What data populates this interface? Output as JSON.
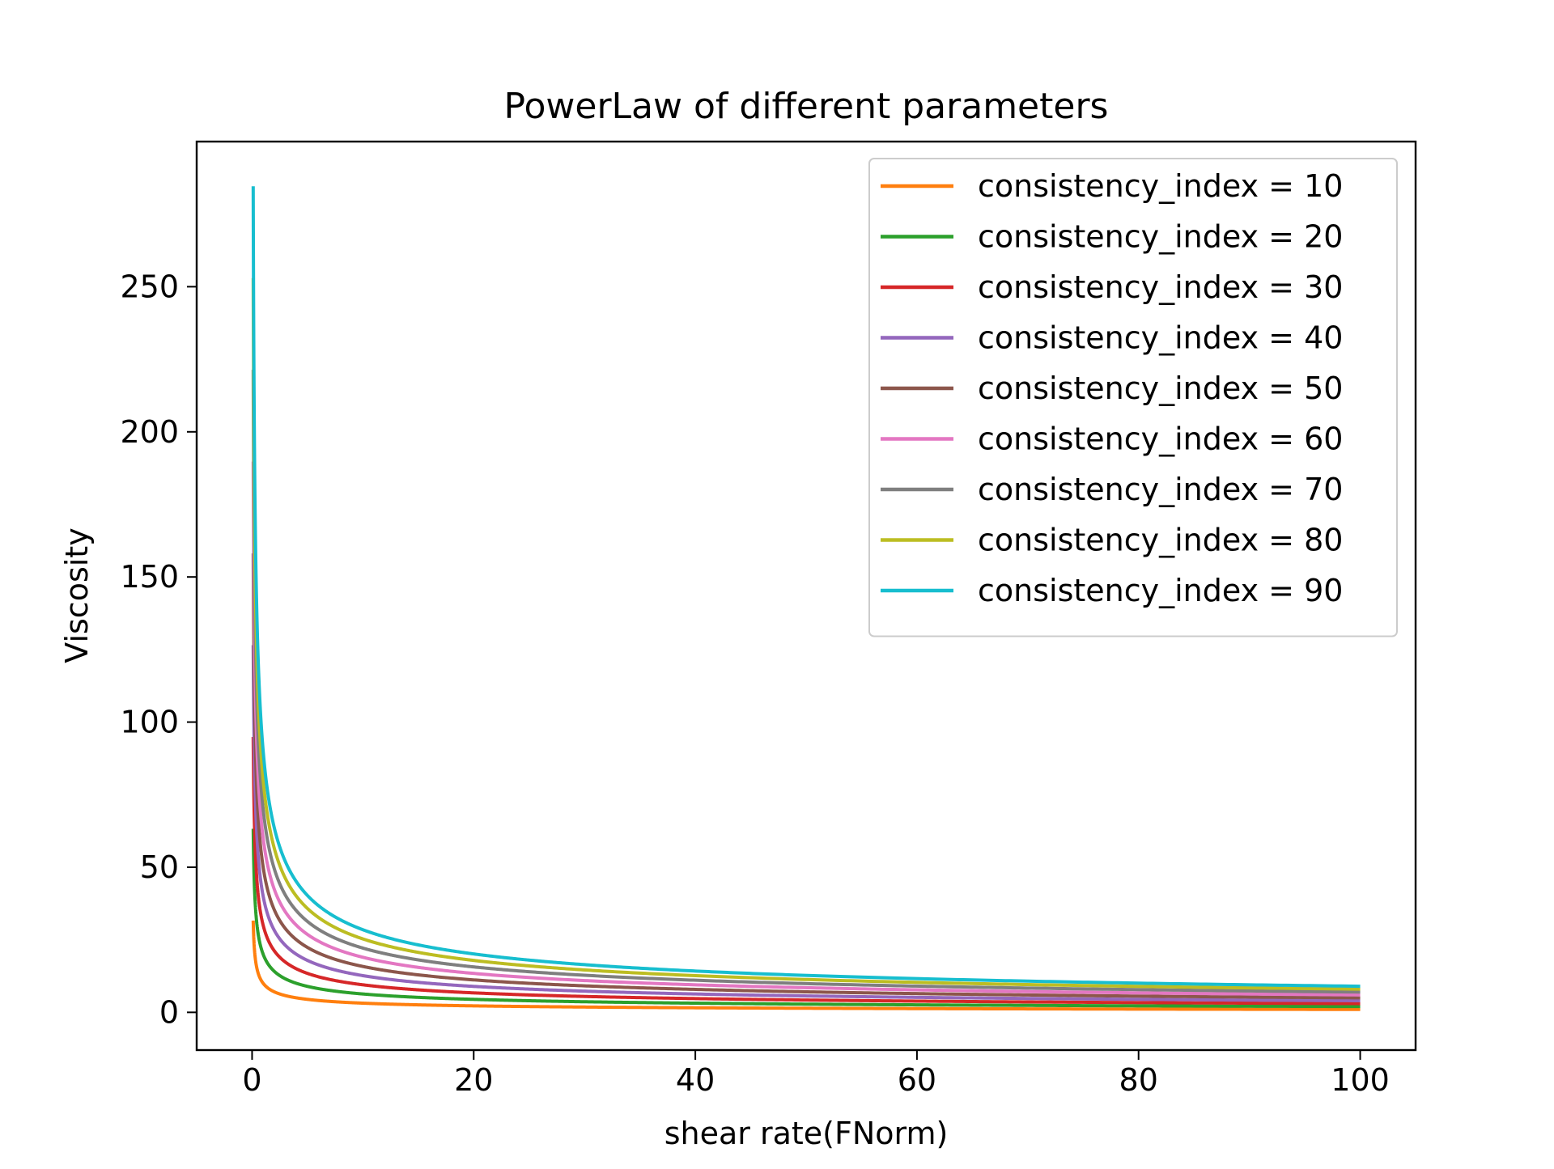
{
  "chart_data": {
    "type": "line",
    "title": "PowerLaw of different parameters",
    "xlabel": "shear rate(FNorm)",
    "ylabel": "Viscosity",
    "xlim": [
      -5,
      105
    ],
    "ylim": [
      -13,
      300
    ],
    "xticks": [
      0,
      20,
      40,
      60,
      80,
      100
    ],
    "yticks": [
      0,
      50,
      100,
      150,
      200,
      250
    ],
    "grid": false,
    "legend_position": "upper right",
    "model": "viscosity = consistency_index * shear_rate ^ -0.5",
    "x_range": [
      0.1,
      100
    ],
    "series": [
      {
        "name": "consistency_index = 10",
        "k": 10,
        "color": "#ff7f0e",
        "values_at": {
          "0.1": 31.6,
          "1": 10.0,
          "10": 3.2,
          "100": 1.0
        }
      },
      {
        "name": "consistency_index = 20",
        "k": 20,
        "color": "#2ca02c",
        "values_at": {
          "0.1": 63.2,
          "1": 20.0,
          "10": 6.3,
          "100": 2.0
        }
      },
      {
        "name": "consistency_index = 30",
        "k": 30,
        "color": "#d62728",
        "values_at": {
          "0.1": 94.9,
          "1": 30.0,
          "10": 9.5,
          "100": 3.0
        }
      },
      {
        "name": "consistency_index = 40",
        "k": 40,
        "color": "#9467bd",
        "values_at": {
          "0.1": 126.5,
          "1": 40.0,
          "10": 12.6,
          "100": 4.0
        }
      },
      {
        "name": "consistency_index = 50",
        "k": 50,
        "color": "#8c564b",
        "values_at": {
          "0.1": 158.1,
          "1": 50.0,
          "10": 15.8,
          "100": 5.0
        }
      },
      {
        "name": "consistency_index = 60",
        "k": 60,
        "color": "#e377c2",
        "values_at": {
          "0.1": 189.7,
          "1": 60.0,
          "10": 19.0,
          "100": 6.0
        }
      },
      {
        "name": "consistency_index = 70",
        "k": 70,
        "color": "#7f7f7f",
        "values_at": {
          "0.1": 221.4,
          "1": 70.0,
          "10": 22.1,
          "100": 7.0
        }
      },
      {
        "name": "consistency_index = 80",
        "k": 80,
        "color": "#bcbd22",
        "values_at": {
          "0.1": 253.0,
          "1": 80.0,
          "10": 25.3,
          "100": 8.0
        }
      },
      {
        "name": "consistency_index = 90",
        "k": 90,
        "color": "#17becf",
        "values_at": {
          "0.1": 284.6,
          "1": 90.0,
          "10": 28.5,
          "100": 9.0
        }
      }
    ]
  }
}
